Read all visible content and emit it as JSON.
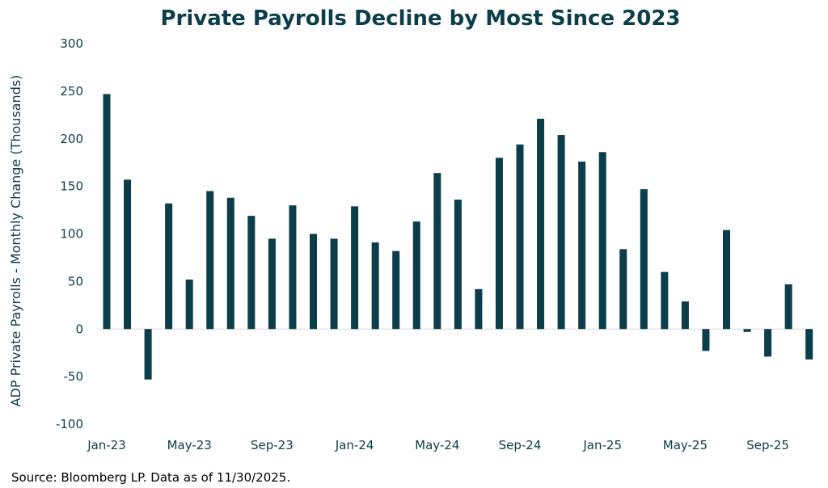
{
  "colors": {
    "bar": "#0b3d4a",
    "title": "#0b3d4a",
    "axis_text": "#0b3d4a",
    "zero_line": "#d9d9d9",
    "source_text": "#000000"
  },
  "source": "Source: Bloomberg LP. Data as of 11/30/2025.",
  "chart_data": {
    "type": "bar",
    "title": "Private Payrolls Decline by Most Since 2023",
    "xlabel": "",
    "ylabel": "ADP Private Payrolls - Monthly Change (Thousands)",
    "ylim": [
      -100,
      300
    ],
    "yticks": [
      300,
      250,
      200,
      150,
      100,
      50,
      0,
      -50,
      -100
    ],
    "grid": false,
    "legend": "none",
    "categories": [
      "Jan-23",
      "Feb-23",
      "Mar-23",
      "Apr-23",
      "May-23",
      "Jun-23",
      "Jul-23",
      "Aug-23",
      "Sep-23",
      "Oct-23",
      "Nov-23",
      "Dec-23",
      "Jan-24",
      "Feb-24",
      "Mar-24",
      "Apr-24",
      "May-24",
      "Jun-24",
      "Jul-24",
      "Aug-24",
      "Sep-24",
      "Oct-24",
      "Nov-24",
      "Dec-24",
      "Jan-25",
      "Feb-25",
      "Mar-25",
      "Apr-25",
      "May-25",
      "Jun-25",
      "Jul-25",
      "Aug-25",
      "Sep-25",
      "Oct-25",
      "Nov-25"
    ],
    "tick_labels": [
      "Jan-23",
      "May-23",
      "Sep-23",
      "Jan-24",
      "May-24",
      "Sep-24",
      "Jan-25",
      "May-25",
      "Sep-25"
    ],
    "values": [
      247,
      157,
      -53,
      132,
      52,
      145,
      138,
      119,
      95,
      130,
      100,
      95,
      129,
      91,
      82,
      113,
      164,
      136,
      42,
      180,
      194,
      221,
      204,
      176,
      186,
      84,
      147,
      60,
      29,
      -23,
      104,
      -3,
      -29,
      47,
      -32
    ]
  }
}
